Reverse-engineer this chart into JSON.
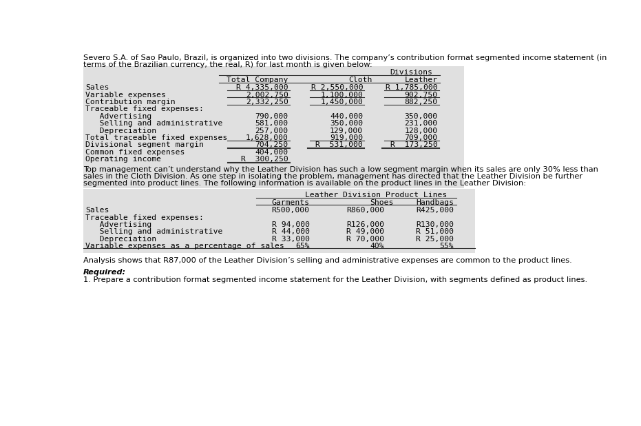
{
  "intro_line1": "Severo S.A. of Sao Paulo, Brazil, is organized into two divisions. The company’s contribution format segmented income statement (in",
  "intro_line2": "terms of the Brazilian currency, the real, R) for last month is given below:",
  "table1_header_group": "Divisions",
  "table1_col_headers": [
    "Total Company",
    "Cloth",
    "Leather"
  ],
  "table1_rows": [
    {
      "label": "Sales",
      "values": [
        "R 4,335,000",
        "R 2,550,000",
        "R 1,785,000"
      ],
      "ul": "single_all"
    },
    {
      "label": "Variable expenses",
      "values": [
        "2,002,750",
        "1,100,000",
        "902,750"
      ],
      "ul": "single_all"
    },
    {
      "label": "Contribution margin",
      "values": [
        "2,332,250",
        "1,450,000",
        "882,250"
      ],
      "ul": "single_all"
    },
    {
      "label": "Traceable fixed expenses:",
      "values": [
        "",
        "",
        ""
      ],
      "ul": "none"
    },
    {
      "label": "   Advertising",
      "values": [
        "790,000",
        "440,000",
        "350,000"
      ],
      "ul": "none"
    },
    {
      "label": "   Selling and administrative",
      "values": [
        "581,000",
        "350,000",
        "231,000"
      ],
      "ul": "none"
    },
    {
      "label": "   Depreciation",
      "values": [
        "257,000",
        "129,000",
        "128,000"
      ],
      "ul": "none"
    },
    {
      "label": "Total traceable fixed expenses",
      "values": [
        "1,628,000",
        "919,000",
        "709,000"
      ],
      "ul": "single_all"
    },
    {
      "label": "Divisional segment margin",
      "values": [
        "704,250",
        "R  531,000",
        "R  173,250"
      ],
      "ul": "double_col1_col2_col3"
    },
    {
      "label": "Common fixed expenses",
      "values": [
        "404,000",
        "",
        ""
      ],
      "ul": "none"
    },
    {
      "label": "Operating income",
      "values": [
        "R  300,250",
        "",
        ""
      ],
      "ul": "double_col1"
    }
  ],
  "mid_line1": "Top management can’t understand why the Leather Division has such a low segment margin when its sales are only 30% less than",
  "mid_line2": "sales in the Cloth Division. As one step in isolating the problem, management has directed that the Leather Division be further",
  "mid_line3": "segmented into product lines. The following information is available on the product lines in the Leather Division:",
  "table2_header_group": "Leather Division Product Lines",
  "table2_col_headers": [
    "Garments",
    "Shoes",
    "Handbags"
  ],
  "table2_rows": [
    {
      "label": "Sales",
      "values": [
        "R500,000",
        "R860,000",
        "R425,000"
      ]
    },
    {
      "label": "Traceable fixed expenses:",
      "values": [
        "",
        "",
        ""
      ]
    },
    {
      "label": "   Advertising",
      "values": [
        "R 94,000",
        "R126,000",
        "R130,000"
      ]
    },
    {
      "label": "   Selling and administrative",
      "values": [
        "R 44,000",
        "R 49,000",
        "R 51,000"
      ]
    },
    {
      "label": "   Depreciation",
      "values": [
        "R 33,000",
        "R 70,000",
        "R 25,000"
      ]
    },
    {
      "label": "Variable expenses as a percentage of sales",
      "values": [
        "65%",
        "40%",
        "55%"
      ]
    }
  ],
  "analysis_text": "Analysis shows that R87,000 of the Leather Division’s selling and administrative expenses are common to the product lines.",
  "required_label": "Required:",
  "required_item": "1. Prepare a contribution format segmented income statement for the Leather Division, with segments defined as product lines.",
  "bg_color": "#ffffff",
  "table_bg": "#e0e0e0",
  "fs_body": 8.2,
  "fs_mono": 8.2
}
